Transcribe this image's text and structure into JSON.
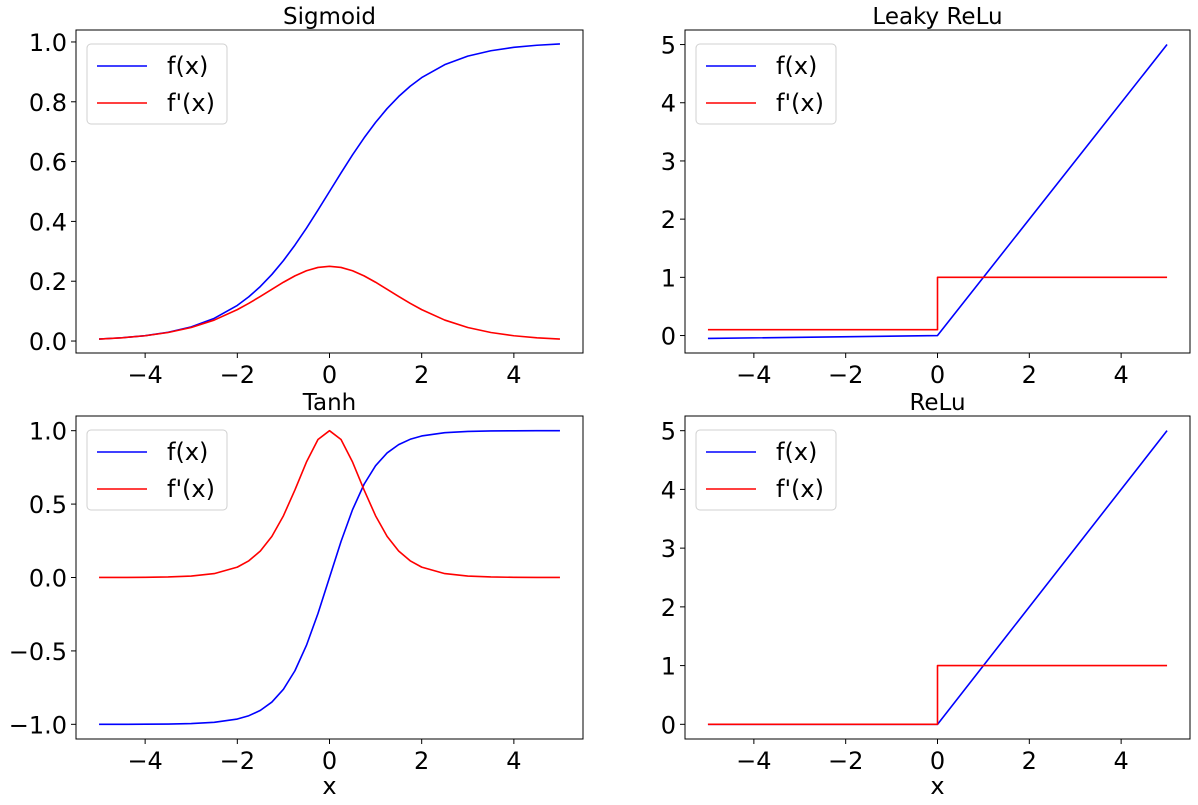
{
  "chart_data": [
    {
      "type": "line",
      "title": "Sigmoid",
      "xlabel": "",
      "xlim": [
        -5.5,
        5.5
      ],
      "ylim": [
        -0.04,
        1.04
      ],
      "xticks": [
        -4,
        -2,
        0,
        2,
        4
      ],
      "xtick_labels": [
        "−4",
        "−2",
        "0",
        "2",
        "4"
      ],
      "yticks": [
        0.0,
        0.2,
        0.4,
        0.6,
        0.8,
        1.0
      ],
      "ytick_labels": [
        "0.0",
        "0.2",
        "0.4",
        "0.6",
        "0.8",
        "1.0"
      ],
      "grid": false,
      "legend": "upper left",
      "series": [
        {
          "name": "f(x)",
          "color": "#0000ff",
          "x": [
            -5,
            -4.5,
            -4,
            -3.5,
            -3,
            -2.5,
            -2,
            -1.75,
            -1.5,
            -1.25,
            -1,
            -0.75,
            -0.5,
            -0.25,
            0,
            0.25,
            0.5,
            0.75,
            1,
            1.25,
            1.5,
            1.75,
            2,
            2.5,
            3,
            3.5,
            4,
            4.5,
            5
          ],
          "y": [
            0.0067,
            0.011,
            0.018,
            0.0293,
            0.0474,
            0.0759,
            0.1192,
            0.148,
            0.1824,
            0.2227,
            0.2689,
            0.3208,
            0.3775,
            0.4378,
            0.5,
            0.5622,
            0.6225,
            0.6792,
            0.7311,
            0.7773,
            0.8176,
            0.852,
            0.8808,
            0.9241,
            0.9526,
            0.9707,
            0.982,
            0.989,
            0.9933
          ]
        },
        {
          "name": "f'(x)",
          "color": "#ff0000",
          "x": [
            -5,
            -4.5,
            -4,
            -3.5,
            -3,
            -2.5,
            -2,
            -1.75,
            -1.5,
            -1.25,
            -1,
            -0.75,
            -0.5,
            -0.25,
            0,
            0.25,
            0.5,
            0.75,
            1,
            1.25,
            1.5,
            1.75,
            2,
            2.5,
            3,
            3.5,
            4,
            4.5,
            5
          ],
          "y": [
            0.0066,
            0.0109,
            0.0177,
            0.0285,
            0.0452,
            0.0701,
            0.105,
            0.1261,
            0.1491,
            0.1731,
            0.1966,
            0.2179,
            0.235,
            0.2461,
            0.25,
            0.2461,
            0.235,
            0.2179,
            0.1966,
            0.1731,
            0.1491,
            0.1261,
            0.105,
            0.0701,
            0.0452,
            0.0285,
            0.0177,
            0.0109,
            0.0066
          ]
        }
      ]
    },
    {
      "type": "line",
      "title": "Leaky ReLu",
      "xlabel": "",
      "xlim": [
        -5.5,
        5.5
      ],
      "ylim": [
        -0.3,
        5.25
      ],
      "xticks": [
        -4,
        -2,
        0,
        2,
        4
      ],
      "xtick_labels": [
        "−4",
        "−2",
        "0",
        "2",
        "4"
      ],
      "yticks": [
        0,
        1,
        2,
        3,
        4,
        5
      ],
      "ytick_labels": [
        "0",
        "1",
        "2",
        "3",
        "4",
        "5"
      ],
      "grid": false,
      "legend": "upper left",
      "series": [
        {
          "name": "f(x)",
          "color": "#0000ff",
          "x": [
            -5,
            0,
            5
          ],
          "y": [
            -0.05,
            0,
            5
          ]
        },
        {
          "name": "f'(x)",
          "color": "#ff0000",
          "x": [
            -5,
            0,
            0,
            5
          ],
          "y": [
            0.1,
            0.1,
            1,
            1
          ]
        }
      ]
    },
    {
      "type": "line",
      "title": "Tanh",
      "xlabel": "x",
      "xlim": [
        -5.5,
        5.5
      ],
      "ylim": [
        -1.1,
        1.1
      ],
      "xticks": [
        -4,
        -2,
        0,
        2,
        4
      ],
      "xtick_labels": [
        "−4",
        "−2",
        "0",
        "2",
        "4"
      ],
      "yticks": [
        -1.0,
        -0.5,
        0.0,
        0.5,
        1.0
      ],
      "ytick_labels": [
        "−1.0",
        "−0.5",
        "0.0",
        "0.5",
        "1.0"
      ],
      "grid": false,
      "legend": "upper left",
      "series": [
        {
          "name": "f(x)",
          "color": "#0000ff",
          "x": [
            -5,
            -4.5,
            -4,
            -3.5,
            -3,
            -2.5,
            -2,
            -1.75,
            -1.5,
            -1.25,
            -1,
            -0.75,
            -0.5,
            -0.25,
            0,
            0.25,
            0.5,
            0.75,
            1,
            1.25,
            1.5,
            1.75,
            2,
            2.5,
            3,
            3.5,
            4,
            4.5,
            5
          ],
          "y": [
            -0.9999,
            -0.9998,
            -0.9993,
            -0.9982,
            -0.9951,
            -0.9866,
            -0.964,
            -0.9414,
            -0.9051,
            -0.8483,
            -0.7616,
            -0.6351,
            -0.4621,
            -0.2449,
            0,
            0.2449,
            0.4621,
            0.6351,
            0.7616,
            0.8483,
            0.9051,
            0.9414,
            0.964,
            0.9866,
            0.9951,
            0.9982,
            0.9993,
            0.9998,
            0.9999
          ]
        },
        {
          "name": "f'(x)",
          "color": "#ff0000",
          "x": [
            -5,
            -4.5,
            -4,
            -3.5,
            -3,
            -2.5,
            -2,
            -1.75,
            -1.5,
            -1.25,
            -1,
            -0.75,
            -0.5,
            -0.25,
            0,
            0.25,
            0.5,
            0.75,
            1,
            1.25,
            1.5,
            1.75,
            2,
            2.5,
            3,
            3.5,
            4,
            4.5,
            5
          ],
          "y": [
            0.0002,
            0.0005,
            0.0013,
            0.0036,
            0.0099,
            0.0266,
            0.0707,
            0.1138,
            0.1807,
            0.2804,
            0.42,
            0.5967,
            0.7864,
            0.94,
            1,
            0.94,
            0.7864,
            0.5967,
            0.42,
            0.2804,
            0.1807,
            0.1138,
            0.0707,
            0.0266,
            0.0099,
            0.0036,
            0.0013,
            0.0005,
            0.0002
          ]
        }
      ]
    },
    {
      "type": "line",
      "title": "ReLu",
      "xlabel": "x",
      "xlim": [
        -5.5,
        5.5
      ],
      "ylim": [
        -0.25,
        5.25
      ],
      "xticks": [
        -4,
        -2,
        0,
        2,
        4
      ],
      "xtick_labels": [
        "−4",
        "−2",
        "0",
        "2",
        "4"
      ],
      "yticks": [
        0,
        1,
        2,
        3,
        4,
        5
      ],
      "ytick_labels": [
        "0",
        "1",
        "2",
        "3",
        "4",
        "5"
      ],
      "grid": false,
      "legend": "upper left",
      "series": [
        {
          "name": "f(x)",
          "color": "#0000ff",
          "x": [
            -5,
            0,
            5
          ],
          "y": [
            0,
            0,
            5
          ]
        },
        {
          "name": "f'(x)",
          "color": "#ff0000",
          "x": [
            -5,
            0,
            0,
            5
          ],
          "y": [
            0,
            0,
            1,
            1
          ]
        }
      ]
    }
  ]
}
